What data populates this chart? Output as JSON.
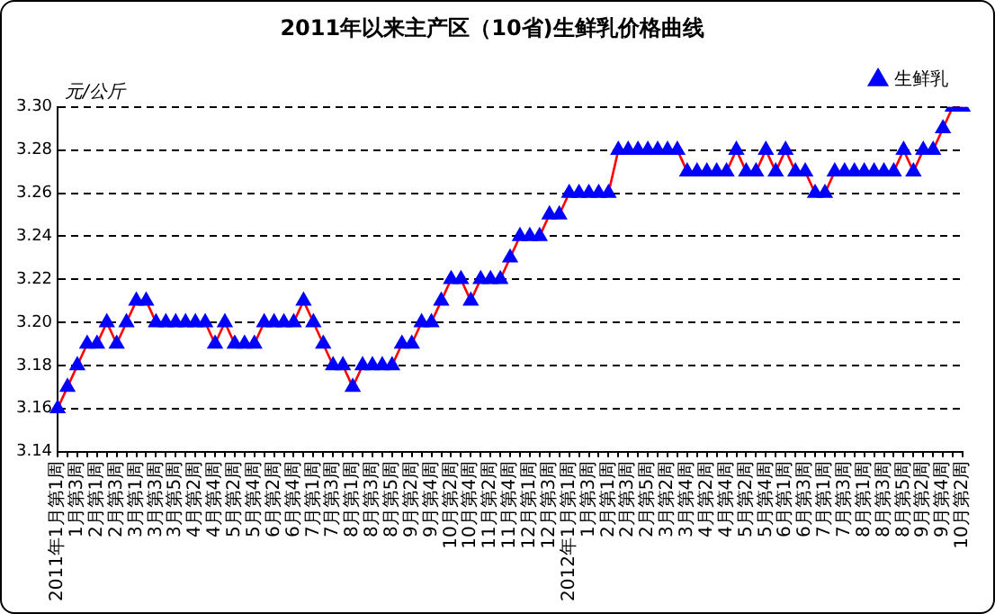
{
  "chart_data": {
    "type": "line",
    "title": "2011年以来主产区（10省)生鲜乳价格曲线",
    "ylabel": "元/公斤",
    "categories": [
      "2011年1月第1周",
      null,
      "1月第3周",
      null,
      "2月第1周",
      null,
      "2月第3周",
      null,
      "3月第1周",
      null,
      "3月第3周",
      null,
      "3月第5周",
      null,
      "4月第2周",
      null,
      "4月第4周",
      null,
      "5月第2周",
      null,
      "5月第4周",
      null,
      "6月第2周",
      null,
      "6月第4周",
      null,
      "7月第1周",
      null,
      "7月第3周",
      null,
      "8月第1周",
      null,
      "8月第3周",
      null,
      "8月第5周",
      null,
      "9月第2周",
      null,
      "9月第4周",
      null,
      "10月第2周",
      null,
      "10月第4周",
      null,
      "11月第2周",
      null,
      "11月第4周",
      null,
      "12月第1周",
      null,
      "12月第3周",
      null,
      "2012年1月第1周",
      null,
      "1月第3周",
      null,
      "2月第1周",
      null,
      "2月第3周",
      null,
      "2月第5周",
      null,
      "3月第2周",
      null,
      "3月第4周",
      null,
      "4月第2周",
      null,
      "4月第4周",
      null,
      "5月第2周",
      null,
      "5月第4周",
      null,
      "6月第1周",
      null,
      "6月第3周",
      null,
      "7月第1周",
      null,
      "7月第3周",
      null,
      "8月第1周",
      null,
      "8月第3周",
      null,
      "8月第5周",
      null,
      "9月第2周",
      null,
      "9月第4周",
      null,
      "10月第2周"
    ],
    "series": [
      {
        "name": "生鲜乳",
        "color": "#0000ff",
        "values": [
          3.16,
          3.17,
          3.18,
          3.19,
          3.19,
          3.2,
          3.19,
          3.2,
          3.21,
          3.21,
          3.2,
          3.2,
          3.2,
          3.2,
          3.2,
          3.2,
          3.19,
          3.2,
          3.19,
          3.19,
          3.19,
          3.2,
          3.2,
          3.2,
          3.2,
          3.21,
          3.2,
          3.19,
          3.18,
          3.18,
          3.17,
          3.18,
          3.18,
          3.18,
          3.18,
          3.19,
          3.19,
          3.2,
          3.2,
          3.21,
          3.22,
          3.22,
          3.21,
          3.22,
          3.22,
          3.22,
          3.23,
          3.24,
          3.24,
          3.24,
          3.25,
          3.25,
          3.26,
          3.26,
          3.26,
          3.26,
          3.26,
          3.28,
          3.28,
          3.28,
          3.28,
          3.28,
          3.28,
          3.28,
          3.27,
          3.27,
          3.27,
          3.27,
          3.27,
          3.28,
          3.27,
          3.27,
          3.28,
          3.27,
          3.28,
          3.27,
          3.27,
          3.26,
          3.26,
          3.27,
          3.27,
          3.27,
          3.27,
          3.27,
          3.27,
          3.27,
          3.28,
          3.27,
          3.28,
          3.28,
          3.29,
          3.3,
          3.3
        ]
      }
    ],
    "ylim": [
      3.14,
      3.3
    ],
    "yticks": [
      {
        "value": 3.14,
        "label": "3.14"
      },
      {
        "value": 3.16,
        "label": "3.16"
      },
      {
        "value": 3.18,
        "label": "3.18"
      },
      {
        "value": 3.2,
        "label": "3.20"
      },
      {
        "value": 3.22,
        "label": "3.22"
      },
      {
        "value": 3.24,
        "label": "3.24"
      },
      {
        "value": 3.26,
        "label": "3.26"
      },
      {
        "value": 3.28,
        "label": "3.28"
      },
      {
        "value": 3.3,
        "label": "3.30"
      }
    ],
    "grid": "y",
    "legend": "top right",
    "marker": "triangle",
    "line_style": "solid"
  }
}
